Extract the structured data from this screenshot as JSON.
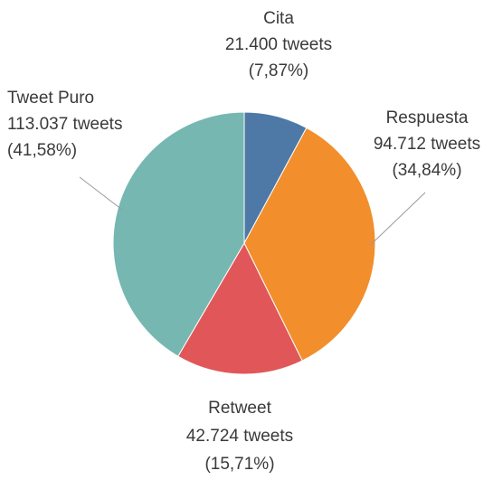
{
  "chart_data": {
    "type": "pie",
    "start_angle_deg": 0,
    "direction": "clockwise",
    "slices": [
      {
        "name": "Cita",
        "value": 21400,
        "percent": 7.87,
        "value_label": "21.400 tweets",
        "percent_label": "(7,87%)",
        "color": "#4e79a7"
      },
      {
        "name": "Respuesta",
        "value": 94712,
        "percent": 34.84,
        "value_label": "94.712 tweets",
        "percent_label": "(34,84%)",
        "color": "#f28e2b"
      },
      {
        "name": "Retweet",
        "value": 42724,
        "percent": 15.71,
        "value_label": "42.724 tweets",
        "percent_label": "(15,71%)",
        "color": "#e15759"
      },
      {
        "name": "Tweet Puro",
        "value": 113037,
        "percent": 41.58,
        "value_label": "113.037 tweets",
        "percent_label": "(41,58%)",
        "color": "#76b7b2"
      }
    ]
  }
}
